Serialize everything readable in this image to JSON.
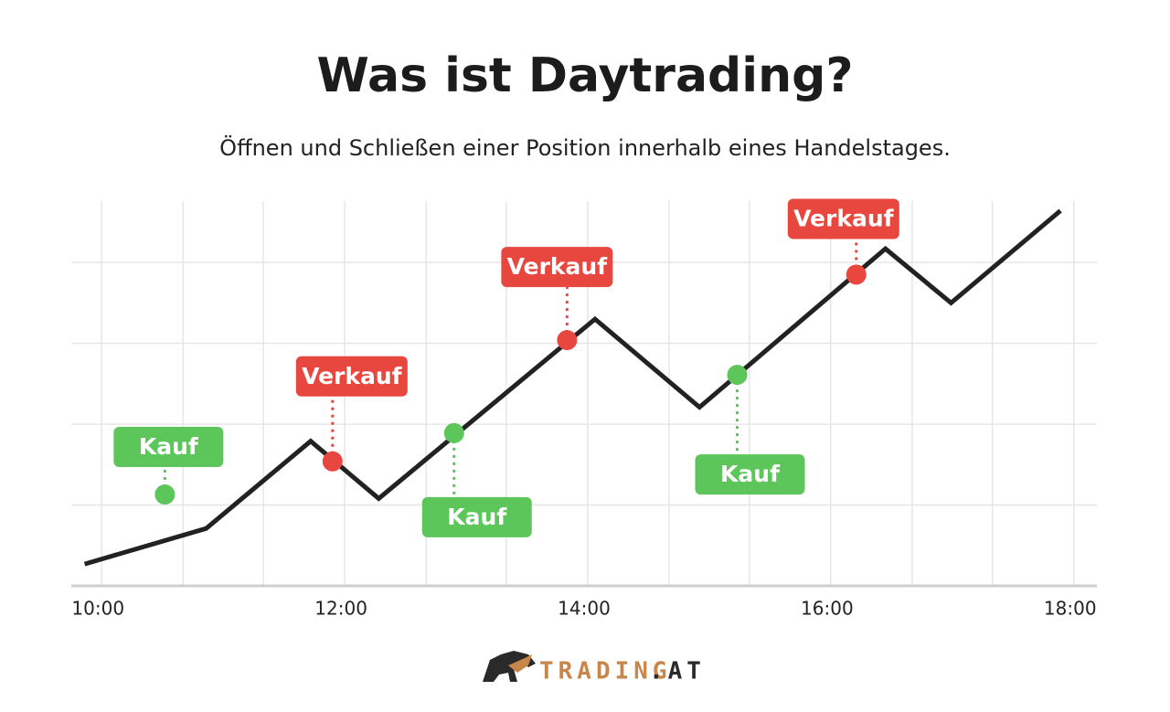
{
  "header": {
    "title": "Was ist Daytrading?",
    "subtitle": "Öffnen und Schließen einer Position innerhalb eines Handelstages."
  },
  "chart_data": {
    "type": "line",
    "x": [
      9.86,
      10.86,
      11.72,
      12.28,
      14.06,
      14.92,
      16.45,
      16.99,
      17.89
    ],
    "series": [
      {
        "color": "#222222",
        "values": [
          0.27,
          0.71,
          1.79,
          1.08,
          3.3,
          2.21,
          4.17,
          3.5,
          4.64
        ]
      }
    ],
    "xlim": [
      9.75,
      18.19
    ],
    "ylim": [
      0,
      4.85
    ],
    "xticks": [
      {
        "value": 10,
        "label": "10:00"
      },
      {
        "value": 12,
        "label": "12:00"
      },
      {
        "value": 14,
        "label": "14:00"
      },
      {
        "value": 16,
        "label": "16:00"
      },
      {
        "value": 18,
        "label": "18:00"
      }
    ],
    "xgrid": [
      10,
      10.67,
      11.33,
      12,
      12.67,
      13.33,
      14,
      14.67,
      15.33,
      16,
      16.67,
      17.33,
      18
    ],
    "yticks": [
      0,
      1,
      2,
      3,
      4
    ],
    "grid": true,
    "signals": [
      {
        "label": "Kauf",
        "x": 10.52,
        "y": 1.13,
        "color": "#5cc65a",
        "position": "above"
      },
      {
        "label": "Verkauf",
        "x": 11.9,
        "y": 1.54,
        "color": "#e8473f",
        "position": "above"
      },
      {
        "label": "Kauf",
        "x": 12.9,
        "y": 1.89,
        "color": "#5cc65a",
        "position": "below"
      },
      {
        "label": "Verkauf",
        "x": 13.83,
        "y": 3.04,
        "color": "#e8473f",
        "position": "above"
      },
      {
        "label": "Kauf",
        "x": 15.23,
        "y": 2.61,
        "color": "#5cc65a",
        "position": "below"
      },
      {
        "label": "Verkauf",
        "x": 16.21,
        "y": 3.85,
        "color": "#e8473f",
        "position": "above"
      }
    ]
  },
  "footer": {
    "logo_main": "TRADING",
    "logo_suffix": ".AT"
  }
}
